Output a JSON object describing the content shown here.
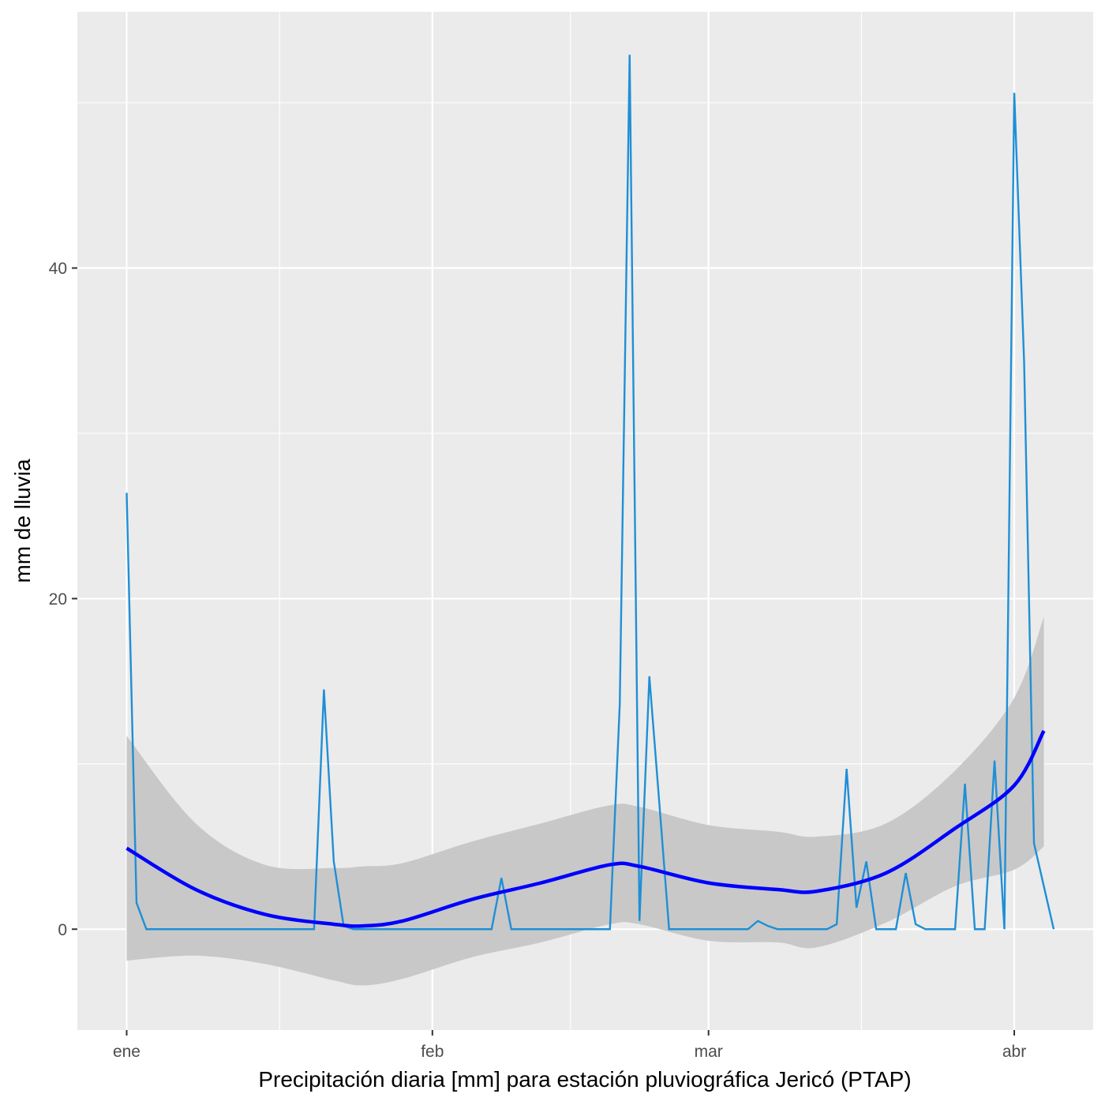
{
  "chart_data": {
    "type": "line",
    "title": "",
    "xlabel": "Precipitación diaria [mm] para estación pluviográfica Jericó (PTAP)",
    "ylabel": "mm de lluvia",
    "x_axis_type": "date",
    "x_ticks": [
      {
        "date": "2019-01-01",
        "label": "ene"
      },
      {
        "date": "2019-02-01",
        "label": "feb"
      },
      {
        "date": "2019-03-01",
        "label": "mar"
      },
      {
        "date": "2019-04-01",
        "label": "abr"
      }
    ],
    "y_ticks": [
      0,
      20,
      40
    ],
    "xlim": [
      "2018-12-27",
      "2019-04-09"
    ],
    "ylim": [
      -6.1,
      55.5
    ],
    "grid": true,
    "background": "#ebebeb",
    "colors": {
      "series": "#1f8fd6",
      "smooth": "#0000ff",
      "ribbon": "#c8c8c8"
    },
    "series": [
      {
        "type": "line",
        "points": [
          [
            "2019-01-01",
            26.4
          ],
          [
            "2019-01-02",
            1.6
          ],
          [
            "2019-01-03",
            0
          ],
          [
            "2019-01-04",
            0
          ],
          [
            "2019-01-05",
            0
          ],
          [
            "2019-01-06",
            0
          ],
          [
            "2019-01-07",
            0
          ],
          [
            "2019-01-08",
            0
          ],
          [
            "2019-01-09",
            0
          ],
          [
            "2019-01-10",
            0
          ],
          [
            "2019-01-11",
            0
          ],
          [
            "2019-01-12",
            0
          ],
          [
            "2019-01-13",
            0
          ],
          [
            "2019-01-14",
            0
          ],
          [
            "2019-01-15",
            0
          ],
          [
            "2019-01-16",
            0
          ],
          [
            "2019-01-17",
            0
          ],
          [
            "2019-01-18",
            0
          ],
          [
            "2019-01-19",
            0
          ],
          [
            "2019-01-20",
            0
          ],
          [
            "2019-01-21",
            14.5
          ],
          [
            "2019-01-22",
            4.1
          ],
          [
            "2019-01-23",
            0.2
          ],
          [
            "2019-01-24",
            0
          ],
          [
            "2019-01-25",
            0
          ],
          [
            "2019-01-26",
            0
          ],
          [
            "2019-01-27",
            0
          ],
          [
            "2019-01-28",
            0
          ],
          [
            "2019-01-29",
            0
          ],
          [
            "2019-01-30",
            0
          ],
          [
            "2019-01-31",
            0
          ],
          [
            "2019-02-01",
            0
          ],
          [
            "2019-02-02",
            0
          ],
          [
            "2019-02-03",
            0
          ],
          [
            "2019-02-04",
            0
          ],
          [
            "2019-02-05",
            0
          ],
          [
            "2019-02-06",
            0
          ],
          [
            "2019-02-07",
            0
          ],
          [
            "2019-02-08",
            3.1
          ],
          [
            "2019-02-09",
            0
          ],
          [
            "2019-02-10",
            0
          ],
          [
            "2019-02-11",
            0
          ],
          [
            "2019-02-12",
            0
          ],
          [
            "2019-02-13",
            0
          ],
          [
            "2019-02-14",
            0
          ],
          [
            "2019-02-15",
            0
          ],
          [
            "2019-02-16",
            0
          ],
          [
            "2019-02-17",
            0
          ],
          [
            "2019-02-18",
            0
          ],
          [
            "2019-02-19",
            0
          ],
          [
            "2019-02-20",
            13.6
          ],
          [
            "2019-02-21",
            52.9
          ],
          [
            "2019-02-22",
            0.5
          ],
          [
            "2019-02-23",
            15.3
          ],
          [
            "2019-02-24",
            7.7
          ],
          [
            "2019-02-25",
            0
          ],
          [
            "2019-02-26",
            0
          ],
          [
            "2019-02-27",
            0
          ],
          [
            "2019-02-28",
            0
          ],
          [
            "2019-03-01",
            0
          ],
          [
            "2019-03-02",
            0
          ],
          [
            "2019-03-03",
            0
          ],
          [
            "2019-03-04",
            0
          ],
          [
            "2019-03-05",
            0
          ],
          [
            "2019-03-06",
            0.5
          ],
          [
            "2019-03-07",
            0.2
          ],
          [
            "2019-03-08",
            0
          ],
          [
            "2019-03-09",
            0
          ],
          [
            "2019-03-10",
            0
          ],
          [
            "2019-03-11",
            0
          ],
          [
            "2019-03-12",
            0
          ],
          [
            "2019-03-13",
            0
          ],
          [
            "2019-03-14",
            0.3
          ],
          [
            "2019-03-15",
            9.7
          ],
          [
            "2019-03-16",
            1.3
          ],
          [
            "2019-03-17",
            4.1
          ],
          [
            "2019-03-18",
            0
          ],
          [
            "2019-03-19",
            0
          ],
          [
            "2019-03-20",
            0
          ],
          [
            "2019-03-21",
            3.4
          ],
          [
            "2019-03-22",
            0.3
          ],
          [
            "2019-03-23",
            0
          ],
          [
            "2019-03-24",
            0
          ],
          [
            "2019-03-25",
            0
          ],
          [
            "2019-03-26",
            0
          ],
          [
            "2019-03-27",
            8.8
          ],
          [
            "2019-03-28",
            0
          ],
          [
            "2019-03-29",
            0
          ],
          [
            "2019-03-30",
            10.2
          ],
          [
            "2019-03-31",
            0
          ],
          [
            "2019-04-01",
            50.6
          ],
          [
            "2019-04-02",
            34.3
          ],
          [
            "2019-04-03",
            5.2
          ],
          [
            "2019-04-04",
            2.6
          ],
          [
            "2019-04-05",
            0
          ]
        ]
      },
      {
        "type": "smooth",
        "method": "loess",
        "confidence_band": true,
        "points": [
          [
            "2019-01-01",
            4.9,
            -1.9,
            11.7
          ],
          [
            "2019-01-08",
            2.4,
            -1.6,
            6.4
          ],
          [
            "2019-01-15",
            0.9,
            -2.1,
            3.9
          ],
          [
            "2019-01-22",
            0.3,
            -3.1,
            3.7
          ],
          [
            "2019-01-25",
            0.2,
            -3.4,
            3.8
          ],
          [
            "2019-01-29",
            0.5,
            -3.0,
            4.0
          ],
          [
            "2019-02-05",
            1.8,
            -1.7,
            5.3
          ],
          [
            "2019-02-12",
            2.8,
            -0.8,
            6.4
          ],
          [
            "2019-02-19",
            3.9,
            0.3,
            7.5
          ],
          [
            "2019-02-22",
            3.8,
            0.3,
            7.4
          ],
          [
            "2019-03-01",
            2.8,
            -0.7,
            6.3
          ],
          [
            "2019-03-08",
            2.4,
            -0.8,
            5.9
          ],
          [
            "2019-03-12",
            2.3,
            -1.1,
            5.6
          ],
          [
            "2019-03-19",
            3.4,
            0.4,
            6.4
          ],
          [
            "2019-03-26",
            6.1,
            2.6,
            9.6
          ],
          [
            "2019-04-01",
            8.7,
            3.6,
            14.0
          ],
          [
            "2019-04-04",
            12.0,
            5.0,
            18.9
          ]
        ]
      }
    ]
  }
}
